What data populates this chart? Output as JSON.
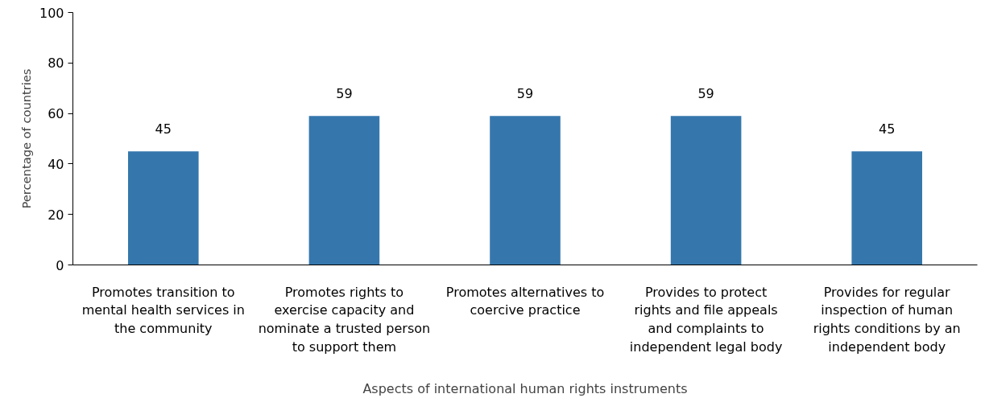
{
  "chart_data": {
    "type": "bar",
    "xlabel": "Aspects of international human rights instruments",
    "ylabel": "Percentage of countries",
    "categories": [
      "Promotes transition to mental health services in the community",
      "Promotes rights to exercise capacity and nominate a trusted person to support them",
      "Promotes alternatives to coercive practice",
      "Provides to protect rights and file appeals and complaints to independent legal body",
      "Provides for regular inspection of human rights conditions by an independent body"
    ],
    "values": [
      45,
      59,
      59,
      59,
      45
    ],
    "color": "#3577ad",
    "ylim": [
      0,
      100
    ],
    "yticks": [
      0,
      20,
      40,
      60,
      80,
      100
    ],
    "grid": false,
    "data_labels": true
  }
}
